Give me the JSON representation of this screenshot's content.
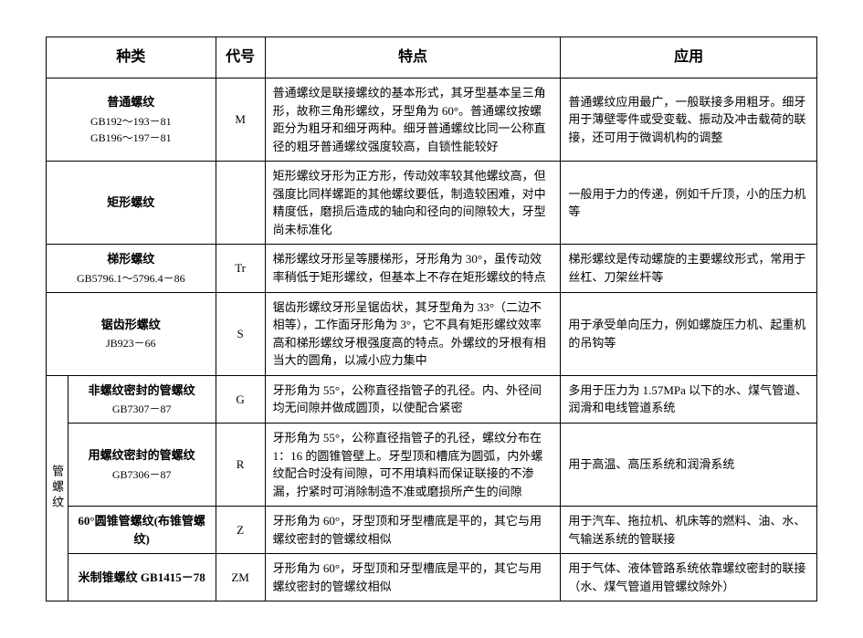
{
  "headers": {
    "type": "种类",
    "code": "代号",
    "feature": "特点",
    "application": "应用"
  },
  "group_label": "管螺纹",
  "rows": [
    {
      "type_name": "普通螺纹",
      "type_sub": "GB192～193－81\nGB196～197－81",
      "code": "M",
      "feature": "普通螺纹是联接螺纹的基本形式，其牙型基本呈三角形，故称三角形螺纹，牙型角为 60°。普通螺纹按螺距分为粗牙和细牙两种。细牙普通螺纹比同一公称直径的粗牙普通螺纹强度较高，自锁性能较好",
      "application": "普通螺纹应用最广，一般联接多用粗牙。细牙用于薄壁零件或受变载、振动及冲击载荷的联接，还可用于微调机构的调整"
    },
    {
      "type_name": "矩形螺纹",
      "type_sub": "",
      "code": "",
      "feature": "矩形螺纹牙形为正方形，传动效率较其他螺纹高，但强度比同样螺距的其他螺纹要低，制造较困难，对中精度低，磨损后造成的轴向和径向的间隙较大，牙型尚未标准化",
      "application": "一般用于力的传递，例如千斤顶，小的压力机等"
    },
    {
      "type_name": "梯形螺纹",
      "type_sub": "GB5796.1～5796.4－86",
      "code": "Tr",
      "feature": "梯形螺纹牙形呈等腰梯形，牙形角为 30°，虽传动效率稍低于矩形螺纹，但基本上不存在矩形螺纹的特点",
      "application": "梯形螺纹是传动螺旋的主要螺纹形式，常用于丝杠、刀架丝杆等"
    },
    {
      "type_name": "锯齿形螺纹",
      "type_sub": "JB923－66",
      "code": "S",
      "feature": "锯齿形螺纹牙形呈锯齿状，其牙型角为 33°（二边不相等），工作面牙形角为 3°，它不具有矩形螺纹效率高和梯形螺纹牙根强度高的特点。外螺纹的牙根有相当大的圆角，以减小应力集中",
      "application": "用于承受单向压力，例如螺旋压力机、起重机的吊钩等"
    },
    {
      "type_name": "非螺纹密封的管螺纹",
      "type_sub": "GB7307－87",
      "code": "G",
      "feature": "牙形角为 55°，公称直径指管子的孔径。内、外径间均无间隙并做成圆顶，以使配合紧密",
      "application": "多用于压力为 1.57MPa 以下的水、煤气管道、润滑和电线管道系统"
    },
    {
      "type_name": "用螺纹密封的管螺纹",
      "type_sub": "GB7306－87",
      "code": "R",
      "feature": "牙形角为 55°，公称直径指管子的孔径，螺纹分布在 1：16 的圆锥管壁上。牙型顶和槽底为圆弧，内外螺纹配合时没有间隙，可不用填料而保证联接的不渗漏，拧紧时可消除制造不准或磨损所产生的间隙",
      "application": "用于高温、高压系统和润滑系统"
    },
    {
      "type_name": "60°圆锥管螺纹(布锥管螺纹)",
      "type_sub": "",
      "code": "Z",
      "feature": "牙形角为 60°，牙型顶和牙型槽底是平的，其它与用螺纹密封的管螺纹相似",
      "application": "用于汽车、拖拉机、机床等的燃料、油、水、气输送系统的管联接"
    },
    {
      "type_name": "米制锥螺纹 GB1415－78",
      "type_sub": "",
      "code": "ZM",
      "feature": "牙形角为 60°，牙型顶和牙型槽底是平的，其它与用螺纹密封的管螺纹相似",
      "application": "用于气体、液体管路系统依靠螺纹密封的联接（水、煤气管道用管螺纹除外）"
    }
  ]
}
